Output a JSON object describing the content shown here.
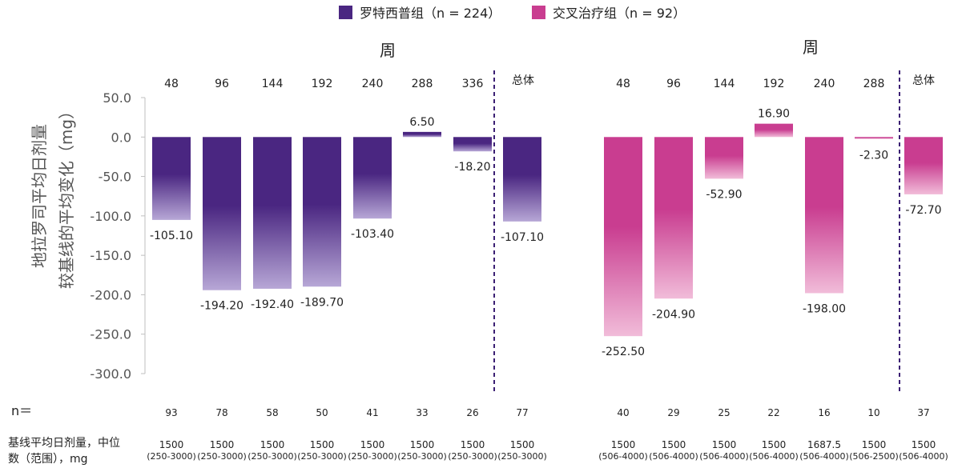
{
  "chart_data": {
    "type": "bar",
    "ylabel_lines": [
      "地拉罗司平均日剂量",
      "较基线的平均变化（mg）"
    ],
    "yticks": [
      "50.0",
      "0.0",
      "-50.0",
      "-100.0",
      "-150.0",
      "-200.0",
      "-250.0",
      "-300.0"
    ],
    "ylim": [
      -300,
      50
    ],
    "legend": {
      "position": "top-center",
      "entries": [
        {
          "label": "罗特西普组（n = 224）",
          "color": "#4a2681"
        },
        {
          "label": "交叉治疗组（n = 92）",
          "color": "#c93d90"
        }
      ]
    },
    "n_label": "n＝",
    "baseline_label_lines": [
      "基线平均日剂量，中位",
      "数（范围），mg"
    ],
    "panels": [
      {
        "title": "周",
        "overall_label": "总体",
        "color": "#4a2681",
        "categories": [
          "48",
          "96",
          "144",
          "192",
          "240",
          "288",
          "336"
        ],
        "values": [
          -105.1,
          -194.2,
          -192.4,
          -189.7,
          -103.4,
          6.5,
          -18.2
        ],
        "value_labels": [
          "-105.10",
          "-194.20",
          "-192.40",
          "-189.70",
          "-103.40",
          "6.50",
          "-18.20"
        ],
        "overall_value": -107.1,
        "overall_value_label": "-107.10",
        "n": [
          "93",
          "78",
          "58",
          "50",
          "41",
          "33",
          "26"
        ],
        "overall_n": "77",
        "baseline_median": [
          "1500",
          "1500",
          "1500",
          "1500",
          "1500",
          "1500",
          "1500"
        ],
        "baseline_range": [
          "(250-3000)",
          "(250-3000)",
          "(250-3000)",
          "(250-3000)",
          "(250-3000)",
          "(250-3000)",
          "(250-3000)"
        ],
        "overall_baseline_median": "1500",
        "overall_baseline_range": "(250-3000)"
      },
      {
        "title": "周",
        "overall_label": "总体",
        "color": "#c93d90",
        "categories": [
          "48",
          "96",
          "144",
          "192",
          "240",
          "288"
        ],
        "values": [
          -252.5,
          -204.9,
          -52.9,
          16.9,
          -198.0,
          -2.3
        ],
        "value_labels": [
          "-252.50",
          "-204.90",
          "-52.90",
          "16.90",
          "-198.00",
          "-2.30"
        ],
        "overall_value": -72.7,
        "overall_value_label": "-72.70",
        "n": [
          "40",
          "29",
          "25",
          "22",
          "16",
          "10"
        ],
        "overall_n": "37",
        "baseline_median": [
          "1500",
          "1500",
          "1500",
          "1500",
          "1687.5",
          "1500"
        ],
        "baseline_range": [
          "(506-4000)",
          "(506-4000)",
          "(506-4000)",
          "(506-4000)",
          "(506-4000)",
          "(506-2500)"
        ],
        "overall_baseline_median": "1500",
        "overall_baseline_range": "(506-4000)"
      }
    ]
  }
}
